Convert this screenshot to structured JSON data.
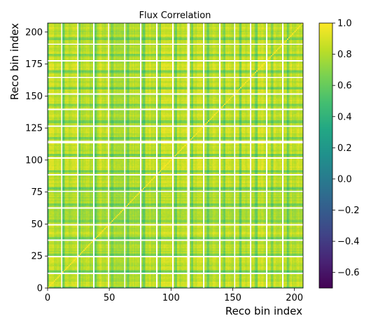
{
  "chart_data": {
    "type": "heatmap",
    "title": "Flux Correlation",
    "xlabel": "Reco bin index",
    "ylabel": "Reco bin index",
    "n_bins": 207,
    "xlim": [
      0,
      207
    ],
    "ylim": [
      0,
      207
    ],
    "x_ticks": [
      0,
      50,
      100,
      150,
      200
    ],
    "y_ticks": [
      0,
      25,
      50,
      75,
      100,
      125,
      150,
      175,
      200
    ],
    "colorbar": {
      "colormap": "viridis",
      "vmin": -0.7,
      "vmax": 1.0,
      "ticks": [
        1.0,
        0.8,
        0.6,
        0.4,
        0.2,
        0.0,
        -0.2,
        -0.4,
        -0.6
      ],
      "tick_labels": [
        "1.0",
        "0.8",
        "0.6",
        "0.4",
        "0.2",
        "0.0",
        "−0.2",
        "−0.4",
        "−0.6"
      ]
    },
    "empty_bins": [
      11,
      24,
      37,
      49,
      62,
      75,
      88,
      101,
      113,
      114,
      126,
      139,
      151,
      164,
      177,
      190
    ],
    "correlation_range": [
      0.3,
      1.0
    ],
    "grid": false
  }
}
